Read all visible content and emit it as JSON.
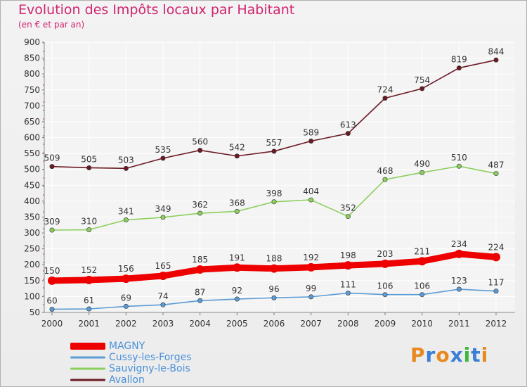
{
  "header": {
    "title": "Evolution des Impôts locaux par Habitant",
    "subtitle": "(en € et par an)"
  },
  "logo": {
    "text": "Proxiti",
    "letters": [
      "P",
      "r",
      "o",
      "x",
      "i",
      "t",
      "i"
    ],
    "colors": [
      "#e8891e",
      "#3d7fd6",
      "#e8891e",
      "#3d7fd6",
      "#3db93d",
      "#3d7fd6",
      "#e8891e"
    ]
  },
  "chart_data": {
    "type": "line",
    "x": [
      "2000",
      "2001",
      "2002",
      "2003",
      "2004",
      "2005",
      "2006",
      "2007",
      "2008",
      "2009",
      "2010",
      "2011",
      "2012"
    ],
    "ylim": [
      50,
      900
    ],
    "yticks": [
      "50",
      "100",
      "150",
      "200",
      "250",
      "300",
      "350",
      "400",
      "450",
      "500",
      "550",
      "600",
      "650",
      "700",
      "750",
      "800",
      "850",
      "900"
    ],
    "grid": true,
    "legend_position": "bottom-left",
    "series": [
      {
        "name": "MAGNY",
        "color": "#ee0000",
        "values": [
          150,
          152,
          156,
          165,
          185,
          191,
          188,
          192,
          198,
          203,
          211,
          234,
          224
        ]
      },
      {
        "name": "Cussy-les-Forges",
        "color": "#5b9bd5",
        "values": [
          60,
          61,
          69,
          74,
          87,
          92,
          96,
          99,
          111,
          106,
          106,
          123,
          117
        ]
      },
      {
        "name": "Sauvigny-le-Bois",
        "color": "#8ccf5e",
        "values": [
          309,
          310,
          341,
          349,
          362,
          368,
          398,
          404,
          352,
          468,
          490,
          510,
          487
        ]
      },
      {
        "name": "Avallon",
        "color": "#6b1a24",
        "values": [
          509,
          505,
          503,
          535,
          560,
          542,
          557,
          589,
          613,
          724,
          754,
          819,
          844
        ]
      }
    ]
  }
}
